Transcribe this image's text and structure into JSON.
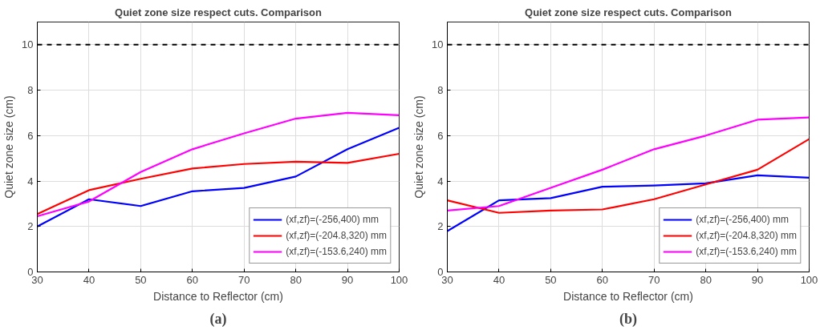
{
  "chart_data": [
    {
      "type": "line",
      "title": "Quiet zone size respect cuts. Comparison",
      "xlabel": "Distance to Reflector (cm)",
      "ylabel": "Quiet zone size (cm)",
      "annotations": [
        "(a)"
      ],
      "x": [
        30,
        40,
        50,
        60,
        70,
        80,
        90,
        100
      ],
      "xlim": [
        30,
        100
      ],
      "xticks": [
        30,
        40,
        50,
        60,
        70,
        80,
        90,
        100
      ],
      "ylim": [
        0,
        11
      ],
      "yticks": [
        0,
        2,
        4,
        6,
        8,
        10
      ],
      "grid": true,
      "legend": "bottom right",
      "line_style": "solid",
      "ref_lines": [
        {
          "axis": "y",
          "value": 10,
          "color": "#000000",
          "line_style": "dashed"
        }
      ],
      "series": [
        {
          "name": "(xf,zf)=(-256,400) mm",
          "color": "#0000ff",
          "values": [
            2.0,
            3.2,
            2.9,
            3.55,
            3.7,
            4.2,
            5.4,
            6.35
          ]
        },
        {
          "name": "(xf,zf)=(-204.8,320) mm",
          "color": "#ff0000",
          "values": [
            2.55,
            3.6,
            4.1,
            4.55,
            4.75,
            4.85,
            4.8,
            5.2
          ]
        },
        {
          "name": "(xf,zf)=(-153.6,240) mm",
          "color": "#ff00ff",
          "values": [
            2.45,
            3.1,
            4.4,
            5.4,
            6.1,
            6.75,
            7.0,
            6.9
          ]
        }
      ]
    },
    {
      "type": "line",
      "title": "Quiet zone size respect cuts. Comparison",
      "xlabel": "Distance to Reflector (cm)",
      "ylabel": "Quiet zone size (cm)",
      "annotations": [
        "(b)"
      ],
      "x": [
        30,
        40,
        50,
        60,
        70,
        80,
        90,
        100
      ],
      "xlim": [
        30,
        100
      ],
      "xticks": [
        30,
        40,
        50,
        60,
        70,
        80,
        90,
        100
      ],
      "ylim": [
        0,
        11
      ],
      "yticks": [
        0,
        2,
        4,
        6,
        8,
        10
      ],
      "grid": true,
      "legend": "bottom right",
      "line_style": "solid",
      "ref_lines": [
        {
          "axis": "y",
          "value": 10,
          "color": "#000000",
          "line_style": "dashed"
        }
      ],
      "series": [
        {
          "name": "(xf,zf)=(-256,400) mm",
          "color": "#0000ff",
          "values": [
            1.8,
            3.15,
            3.25,
            3.75,
            3.8,
            3.9,
            4.25,
            4.15
          ]
        },
        {
          "name": "(xf,zf)=(-204.8,320) mm",
          "color": "#ff0000",
          "values": [
            3.15,
            2.6,
            2.7,
            2.75,
            3.2,
            3.85,
            4.5,
            5.85
          ]
        },
        {
          "name": "(xf,zf)=(-153.6,240) mm",
          "color": "#ff00ff",
          "values": [
            2.7,
            2.9,
            3.7,
            4.5,
            5.4,
            6.0,
            6.7,
            6.8
          ]
        }
      ]
    }
  ]
}
